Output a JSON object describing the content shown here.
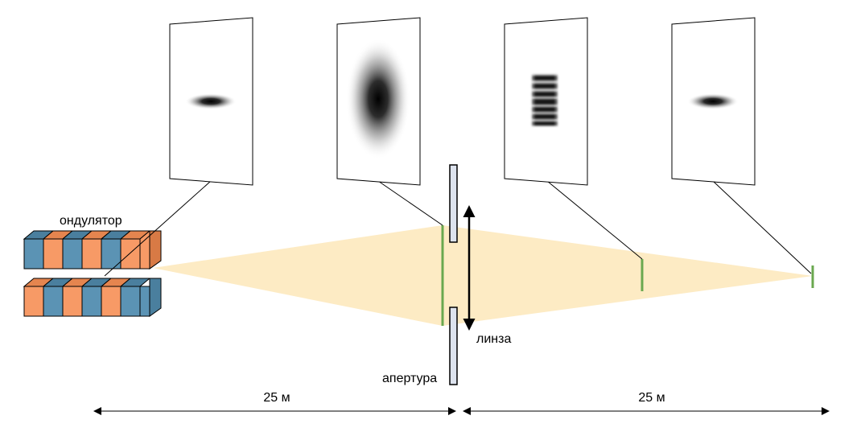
{
  "labels": {
    "undulator": "ондулятор",
    "lens": "линза",
    "aperture": "апертура",
    "distance_left": "25 м",
    "distance_right": "25 м"
  },
  "colors": {
    "beam": "#fdebc4",
    "screen_marker": "#6aa84f",
    "magnet_orange": "#f79a66",
    "magnet_blue": "#5b93b4",
    "aperture_fill": "#dde3ee",
    "outline": "#000000"
  },
  "icons": {
    "lens": "double-headed-arrow",
    "distance": "double-headed-arrow"
  },
  "images": [
    "small-horizontal-spot",
    "large-diffuse-vertical-spot",
    "aperture-diffraction-pattern",
    "refocused-small-spot"
  ]
}
